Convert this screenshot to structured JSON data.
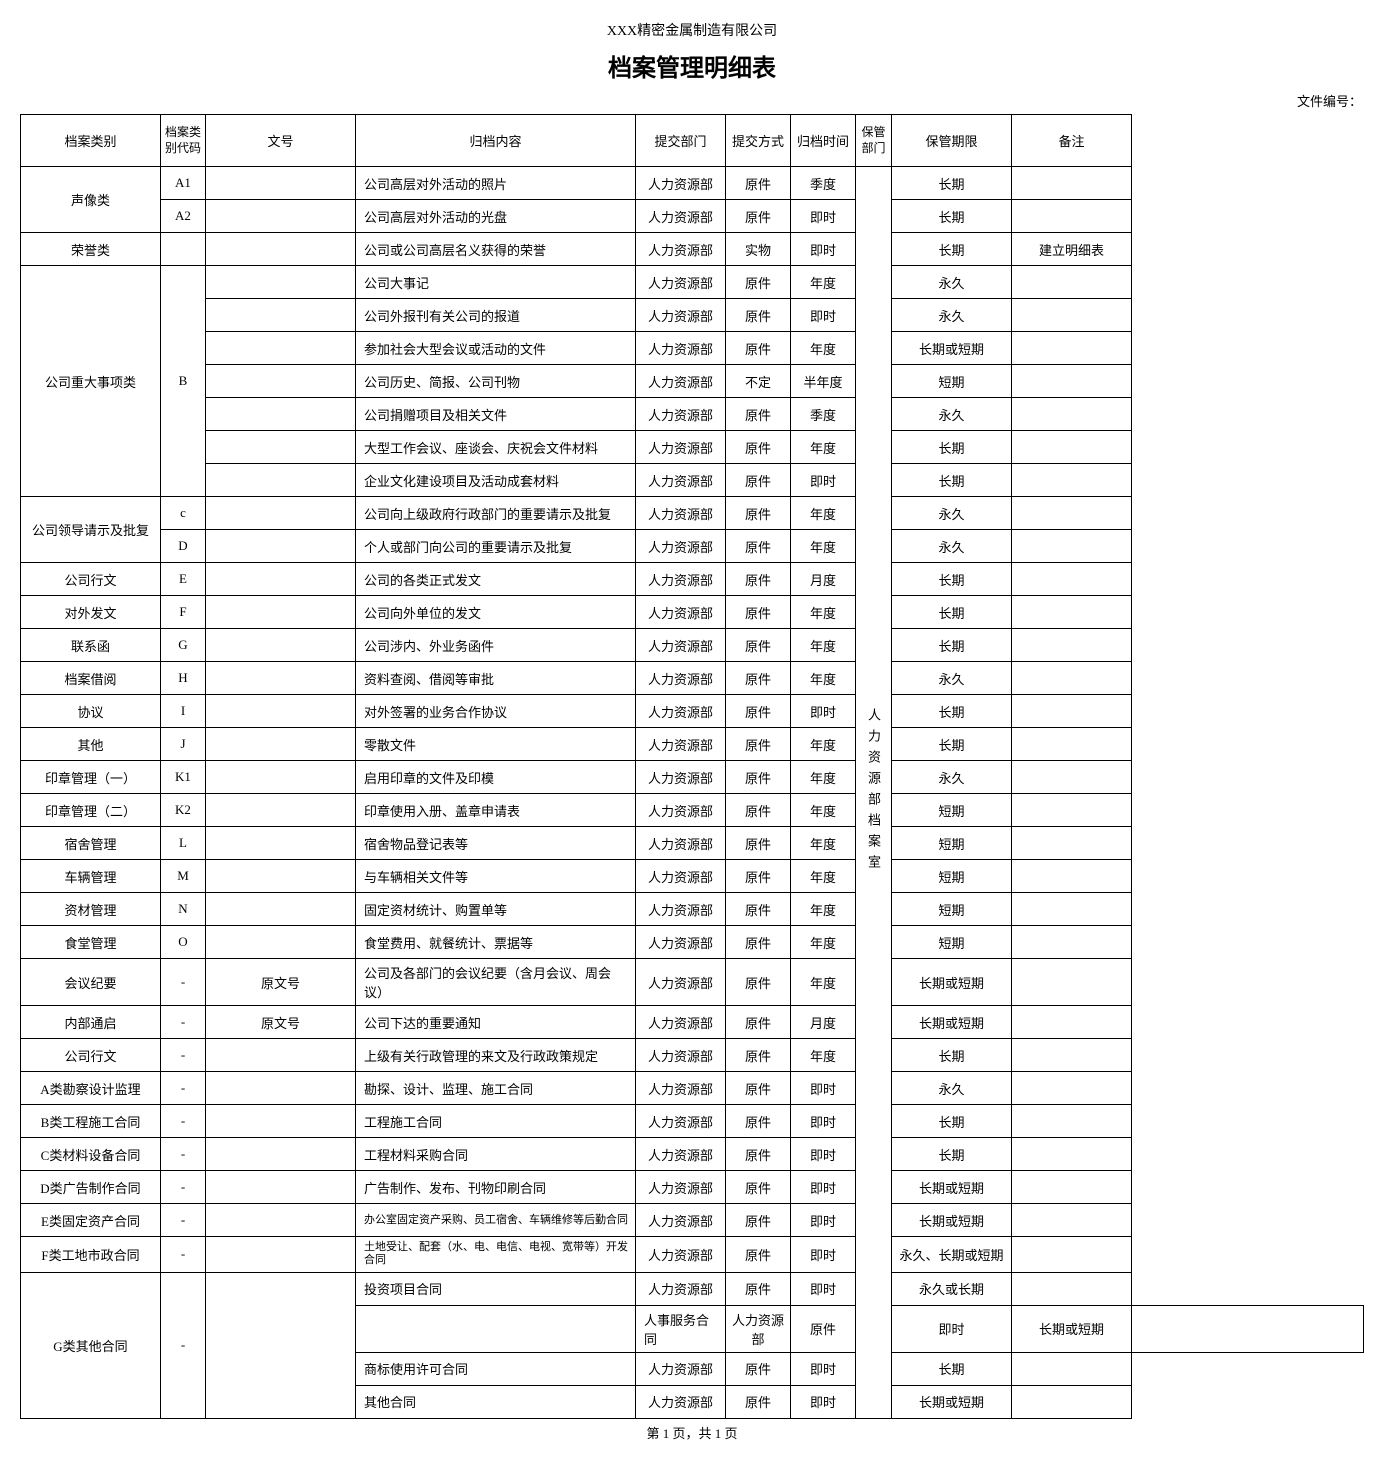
{
  "company_name": "XXX精密金属制造有限公司",
  "title": "档案管理明细表",
  "doc_number_label": "文件编号：",
  "footer": "第 1 页，共 1 页",
  "storage_dept": "人力资源部档案室",
  "headers": {
    "category": "档案类别",
    "code": "档案类别代码",
    "docnum": "文号",
    "content": "归档内容",
    "dept": "提交部门",
    "method": "提交方式",
    "time": "归档时间",
    "storage": "保管部门",
    "period": "保管期限",
    "remark": "备注"
  },
  "rows": [
    {
      "category": "声像类",
      "cat_rowspan": 2,
      "code": "A1",
      "content": "公司高层对外活动的照片",
      "dept": "人力资源部",
      "method": "原件",
      "time": "季度",
      "period": "长期",
      "remark": ""
    },
    {
      "code": "A2",
      "content": "公司高层对外活动的光盘",
      "dept": "人力资源部",
      "method": "原件",
      "time": "即时",
      "period": "长期",
      "remark": ""
    },
    {
      "category": "荣誉类",
      "code": "",
      "content": "公司或公司高层名义获得的荣誉",
      "dept": "人力资源部",
      "method": "实物",
      "time": "即时",
      "period": "长期",
      "remark": "建立明细表"
    },
    {
      "category": "公司重大事项类",
      "cat_rowspan": 7,
      "code": "B",
      "code_rowspan": 7,
      "content": "公司大事记",
      "dept": "人力资源部",
      "method": "原件",
      "time": "年度",
      "period": "永久",
      "remark": ""
    },
    {
      "content": "公司外报刊有关公司的报道",
      "dept": "人力资源部",
      "method": "原件",
      "time": "即时",
      "period": "永久",
      "remark": ""
    },
    {
      "content": "参加社会大型会议或活动的文件",
      "dept": "人力资源部",
      "method": "原件",
      "time": "年度",
      "period": "长期或短期",
      "remark": ""
    },
    {
      "content": "公司历史、简报、公司刊物",
      "dept": "人力资源部",
      "method": "不定",
      "time": "半年度",
      "period": "短期",
      "remark": ""
    },
    {
      "content": "公司捐赠项目及相关文件",
      "dept": "人力资源部",
      "method": "原件",
      "time": "季度",
      "period": "永久",
      "remark": ""
    },
    {
      "content": "大型工作会议、座谈会、庆祝会文件材料",
      "dept": "人力资源部",
      "method": "原件",
      "time": "年度",
      "period": "长期",
      "remark": ""
    },
    {
      "content": "企业文化建设项目及活动成套材料",
      "dept": "人力资源部",
      "method": "原件",
      "time": "即时",
      "period": "长期",
      "remark": ""
    },
    {
      "category": "公司领导请示及批复",
      "cat_rowspan": 2,
      "code": "c",
      "content": "公司向上级政府行政部门的重要请示及批复",
      "dept": "人力资源部",
      "method": "原件",
      "time": "年度",
      "period": "永久",
      "remark": ""
    },
    {
      "code": "D",
      "content": "个人或部门向公司的重要请示及批复",
      "dept": "人力资源部",
      "method": "原件",
      "time": "年度",
      "period": "永久",
      "remark": ""
    },
    {
      "category": "公司行文",
      "code": "E",
      "content": "公司的各类正式发文",
      "dept": "人力资源部",
      "method": "原件",
      "time": "月度",
      "period": "长期",
      "remark": ""
    },
    {
      "category": "对外发文",
      "code": "F",
      "content": "公司向外单位的发文",
      "dept": "人力资源部",
      "method": "原件",
      "time": "年度",
      "period": "长期",
      "remark": ""
    },
    {
      "category": "联系函",
      "code": "G",
      "content": "公司涉内、外业务函件",
      "dept": "人力资源部",
      "method": "原件",
      "time": "年度",
      "period": "长期",
      "remark": ""
    },
    {
      "category": "档案借阅",
      "code": "H",
      "content": "资料查阅、借阅等审批",
      "dept": "人力资源部",
      "method": "原件",
      "time": "年度",
      "period": "永久",
      "remark": ""
    },
    {
      "category": "协议",
      "code": "I",
      "content": "对外签署的业务合作协议",
      "dept": "人力资源部",
      "method": "原件",
      "time": "即时",
      "period": "长期",
      "remark": ""
    },
    {
      "category": "其他",
      "code": "J",
      "content": "零散文件",
      "dept": "人力资源部",
      "method": "原件",
      "time": "年度",
      "period": "长期",
      "remark": ""
    },
    {
      "category": "印章管理（一）",
      "code": "K1",
      "content": "启用印章的文件及印模",
      "dept": "人力资源部",
      "method": "原件",
      "time": "年度",
      "period": "永久",
      "remark": ""
    },
    {
      "category": "印章管理（二）",
      "code": "K2",
      "content": "印章使用入册、盖章申请表",
      "dept": "人力资源部",
      "method": "原件",
      "time": "年度",
      "period": "短期",
      "remark": ""
    },
    {
      "category": "宿舍管理",
      "code": "L",
      "content": "宿舍物品登记表等",
      "dept": "人力资源部",
      "method": "原件",
      "time": "年度",
      "period": "短期",
      "remark": ""
    },
    {
      "category": "车辆管理",
      "code": "M",
      "content": "与车辆相关文件等",
      "dept": "人力资源部",
      "method": "原件",
      "time": "年度",
      "period": "短期",
      "remark": ""
    },
    {
      "category": "资材管理",
      "code": "N",
      "content": "固定资材统计、购置单等",
      "dept": "人力资源部",
      "method": "原件",
      "time": "年度",
      "period": "短期",
      "remark": ""
    },
    {
      "category": "食堂管理",
      "code": "O",
      "content": "食堂费用、就餐统计、票据等",
      "dept": "人力资源部",
      "method": "原件",
      "time": "年度",
      "period": "短期",
      "remark": ""
    },
    {
      "category": "会议纪要",
      "code": "-",
      "docnum": "原文号",
      "content": "公司及各部门的会议纪要（含月会议、周会议）",
      "dept": "人力资源部",
      "method": "原件",
      "time": "年度",
      "period": "长期或短期",
      "remark": ""
    },
    {
      "category": "内部通启",
      "code": "-",
      "docnum": "原文号",
      "content": "公司下达的重要通知",
      "dept": "人力资源部",
      "method": "原件",
      "time": "月度",
      "period": "长期或短期",
      "remark": ""
    },
    {
      "category": "公司行文",
      "code": "-",
      "content": "上级有关行政管理的来文及行政政策规定",
      "dept": "人力资源部",
      "method": "原件",
      "time": "年度",
      "period": "长期",
      "remark": ""
    },
    {
      "category": "A类勘察设计监理",
      "code": "-",
      "content": "勘探、设计、监理、施工合同",
      "dept": "人力资源部",
      "method": "原件",
      "time": "即时",
      "period": "永久",
      "remark": ""
    },
    {
      "category": "B类工程施工合同",
      "code": "-",
      "content": "工程施工合同",
      "dept": "人力资源部",
      "method": "原件",
      "time": "即时",
      "period": "长期",
      "remark": ""
    },
    {
      "category": "C类材料设备合同",
      "code": "-",
      "content": "工程材料采购合同",
      "dept": "人力资源部",
      "method": "原件",
      "time": "即时",
      "period": "长期",
      "remark": ""
    },
    {
      "category": "D类广告制作合同",
      "code": "-",
      "content": "广告制作、发布、刊物印刷合同",
      "dept": "人力资源部",
      "method": "原件",
      "time": "即时",
      "period": "长期或短期",
      "remark": ""
    },
    {
      "category": "E类固定资产合同",
      "code": "-",
      "content": "办公室固定资产采购、员工宿舍、车辆维修等后勤合同",
      "small": true,
      "dept": "人力资源部",
      "method": "原件",
      "time": "即时",
      "period": "长期或短期",
      "remark": ""
    },
    {
      "category": "F类工地市政合同",
      "code": "-",
      "content": "土地受让、配套（水、电、电信、电视、宽带等）开发合同",
      "small": true,
      "dept": "人力资源部",
      "method": "原件",
      "time": "即时",
      "period": "永久、长期或短期",
      "remark": ""
    },
    {
      "category": "G类其他合同",
      "cat_rowspan": 4,
      "code": "-",
      "code_rowspan": 4,
      "docnum_rowspan": 4,
      "content": "投资项目合同",
      "dept": "人力资源部",
      "method": "原件",
      "time": "即时",
      "period": "永久或长期",
      "remark": ""
    },
    {
      "content": "人事服务合同",
      "dept": "人力资源部",
      "method": "原件",
      "time": "即时",
      "period": "长期或短期",
      "remark": ""
    },
    {
      "content": "商标使用许可合同",
      "dept": "人力资源部",
      "method": "原件",
      "time": "即时",
      "period": "长期",
      "remark": ""
    },
    {
      "content": "其他合同",
      "dept": "人力资源部",
      "method": "原件",
      "time": "即时",
      "period": "长期或短期",
      "remark": ""
    }
  ]
}
